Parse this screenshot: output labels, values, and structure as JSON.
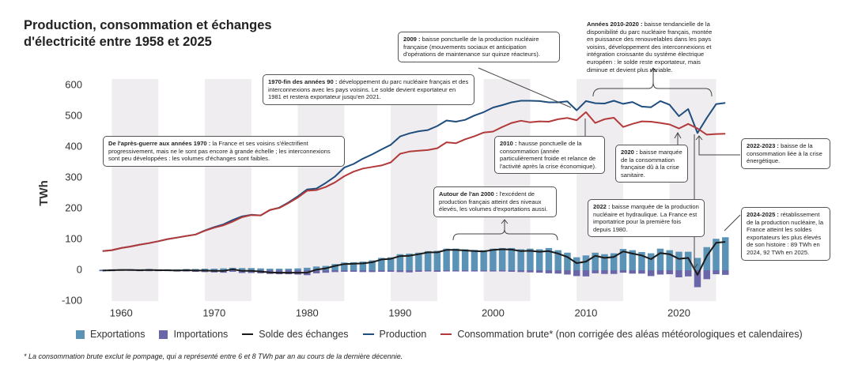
{
  "chart_data": {
    "type": "combo",
    "title": "Production, consommation et échanges d'électricité entre 1958 et 2025",
    "y_label": "TWh",
    "footnote": "* La consommation brute exclut le pompage, qui a représenté entre 6 et 8 TWh par an au cours de la dernière décennie.",
    "xlim": [
      1957,
      2026
    ],
    "xticks": [
      1960,
      1970,
      1980,
      1990,
      2000,
      2010,
      2020
    ],
    "ylim": [
      -100,
      600
    ],
    "yticks": [
      -100,
      0,
      100,
      200,
      300,
      400,
      500,
      600
    ],
    "x": [
      1958,
      1959,
      1960,
      1961,
      1962,
      1963,
      1964,
      1965,
      1966,
      1967,
      1968,
      1969,
      1970,
      1971,
      1972,
      1973,
      1974,
      1975,
      1976,
      1977,
      1978,
      1979,
      1980,
      1981,
      1982,
      1983,
      1984,
      1985,
      1986,
      1987,
      1988,
      1989,
      1990,
      1991,
      1992,
      1993,
      1994,
      1995,
      1996,
      1997,
      1998,
      1999,
      2000,
      2001,
      2002,
      2003,
      2004,
      2005,
      2006,
      2007,
      2008,
      2009,
      2010,
      2011,
      2012,
      2013,
      2014,
      2015,
      2016,
      2017,
      2018,
      2019,
      2020,
      2021,
      2022,
      2023,
      2024,
      2025
    ],
    "series": [
      {
        "name": "Exportations",
        "type": "bar",
        "color": "#5b93b6",
        "values": [
          2,
          3,
          3,
          3,
          3,
          4,
          3,
          3,
          3,
          4,
          4,
          5,
          5,
          6,
          8,
          7,
          7,
          6,
          5,
          5,
          5,
          6,
          8,
          12,
          14,
          20,
          25,
          26,
          28,
          32,
          40,
          42,
          52,
          54,
          57,
          62,
          63,
          70,
          70,
          68,
          66,
          65,
          70,
          72,
          72,
          68,
          70,
          68,
          72,
          65,
          57,
          42,
          48,
          57,
          52,
          55,
          69,
          65,
          59,
          55,
          70,
          65,
          60,
          60,
          40,
          75,
          102,
          107
        ]
      },
      {
        "name": "Importations",
        "type": "bar",
        "color": "#6a67a9",
        "values": [
          -3,
          -3,
          -2,
          -2,
          -3,
          -3,
          -3,
          -3,
          -4,
          -4,
          -5,
          -6,
          -7,
          -8,
          -5,
          -9,
          -9,
          -10,
          -12,
          -13,
          -13,
          -14,
          -16,
          -10,
          -8,
          -6,
          -5,
          -5,
          -6,
          -6,
          -5,
          -5,
          -6,
          -7,
          -5,
          -4,
          -5,
          -4,
          -4,
          -4,
          -4,
          -4,
          -4,
          -4,
          -5,
          -6,
          -7,
          -8,
          -10,
          -11,
          -14,
          -19,
          -20,
          -10,
          -12,
          -12,
          -8,
          -11,
          -11,
          -19,
          -14,
          -13,
          -23,
          -20,
          -55,
          -29,
          -13,
          -15
        ]
      },
      {
        "name": "Solde des échanges",
        "type": "line",
        "color": "#1a1a1a",
        "values": [
          -1,
          0,
          1,
          1,
          0,
          1,
          0,
          0,
          -1,
          0,
          -1,
          -1,
          -2,
          -2,
          3,
          -2,
          -2,
          -4,
          -7,
          -8,
          -8,
          -8,
          -8,
          2,
          6,
          14,
          20,
          21,
          22,
          26,
          35,
          37,
          46,
          47,
          52,
          58,
          58,
          66,
          66,
          64,
          62,
          61,
          66,
          68,
          67,
          62,
          63,
          60,
          62,
          54,
          43,
          23,
          28,
          47,
          40,
          43,
          61,
          54,
          48,
          36,
          56,
          52,
          37,
          40,
          -15,
          46,
          89,
          92
        ]
      },
      {
        "name": "Production",
        "type": "line",
        "color": "#1f4e7e",
        "values": [
          62,
          65,
          72,
          77,
          83,
          88,
          94,
          101,
          106,
          111,
          116,
          129,
          140,
          149,
          163,
          175,
          180,
          178,
          195,
          203,
          220,
          240,
          262,
          265,
          283,
          304,
          333,
          345,
          362,
          376,
          392,
          407,
          434,
          444,
          451,
          455,
          468,
          486,
          482,
          488,
          502,
          513,
          528,
          536,
          545,
          550,
          550,
          549,
          545,
          545,
          548,
          519,
          549,
          542,
          541,
          550,
          540,
          546,
          531,
          529,
          549,
          537,
          500,
          523,
          445,
          494,
          539,
          543
        ]
      },
      {
        "name": "Consommation brute* (non corrigée des aléas météorologiques et calendaires)",
        "type": "line",
        "color": "#b33a3a",
        "values": [
          62,
          65,
          72,
          77,
          83,
          88,
          94,
          101,
          106,
          111,
          116,
          128,
          138,
          146,
          158,
          172,
          179,
          178,
          196,
          202,
          218,
          236,
          258,
          260,
          270,
          285,
          305,
          320,
          330,
          335,
          340,
          350,
          378,
          385,
          388,
          390,
          396,
          415,
          412,
          425,
          435,
          447,
          450,
          465,
          478,
          485,
          480,
          483,
          482,
          490,
          494,
          487,
          513,
          478,
          490,
          495,
          465,
          475,
          483,
          482,
          478,
          473,
          460,
          475,
          460,
          440,
          442,
          443
        ]
      }
    ],
    "annotations": [
      {
        "bold": "2009 :",
        "text": "baisse ponctuelle de la production nucléaire française (mouvements sociaux et anticipation d'opérations de maintenance sur quinze réacteurs)."
      },
      {
        "bold": "Années 2010-2020 :",
        "text": "baisse tendancielle de la disponibilité du parc nucléaire français, montée en puissance des renouvelables dans les pays voisins, développement des interconnexions et intégration croissante du système électrique européen : le solde  reste exportateur, mais diminue et devient plus variable."
      },
      {
        "bold": "1970-fin des années 90 :",
        "text": "développement du parc nucléaire français et des interconnexions avec les pays voisins. Le solde devient exportateur en 1981 et restera exportateur jusqu'en 2021."
      },
      {
        "bold": "De l'après-guerre aux années 1970 :",
        "text": "la France et ses voisins s'électrifient progressivement, mais ne le sont pas encore à grande échelle ; les interconnexions sont peu développées : les volumes d'échanges sont faibles."
      },
      {
        "bold": "2010 :",
        "text": "hausse ponctuelle de la consommation (année particulièrement froide et relance de l'activité après la crise économique)."
      },
      {
        "bold": "2020 :",
        "text": "baisse marquée de la consommation française dû à la crise sanitaire."
      },
      {
        "bold": "2022-2023 :",
        "text": "baisse de la consommation liée à la crise énergétique."
      },
      {
        "bold": "Autour de l'an 2000 :",
        "text": "l'excédent de production français atteint des niveaux élevés, les volumes d'exportations aussi."
      },
      {
        "bold": "2022 :",
        "text": "baisse marquée de la production nucléaire et hydraulique. La France est importatrice pour la première fois depuis 1980."
      },
      {
        "bold": "2024-2025 :",
        "text": "rétablissement de la production nucléaire, la France atteint les soldes exportateurs les plus élevés de son histoire : 89 TWh en 2024, 92 TWh en 2025."
      }
    ]
  }
}
